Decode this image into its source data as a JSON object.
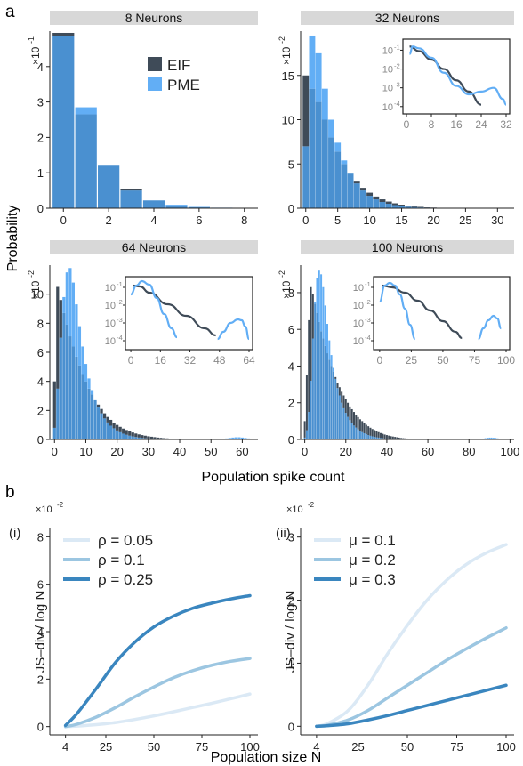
{
  "colors": {
    "eif": "#3f4b58",
    "pme": "#62aef5",
    "overlap": "#4a90d0",
    "strip": "#d8d8d8",
    "axis": "#222222",
    "inset_axis": "#888888",
    "shade_low": "#dbe9f5",
    "shade_mid": "#9cc6e1",
    "shade_high": "#3a86bf"
  },
  "labels": {
    "panel_a": "a",
    "panel_b": "b",
    "ylabel_a": "Probability",
    "xlabel_a": "Population spike count",
    "sub_i": "(i)",
    "sub_ii": "(ii)",
    "ylabel_b": "JS–div / log N",
    "xlabel_b": "Population size N",
    "x10": "×10",
    "exp_m1": "-1",
    "exp_m2": "-2"
  },
  "legend_a": [
    {
      "name": "EIF",
      "color": "#3f4b58"
    },
    {
      "name": "PME",
      "color": "#62aef5"
    }
  ],
  "chart_data": [
    {
      "type": "bar",
      "id": "p8",
      "title": "8  Neurons",
      "multiplier": "×10^-1",
      "xlim": [
        -0.6,
        8.6
      ],
      "ylim": [
        0,
        5
      ],
      "xticks": [
        0,
        2,
        4,
        6,
        8
      ],
      "yticks": [
        0,
        1,
        2,
        3,
        4
      ],
      "series": [
        {
          "name": "EIF",
          "values": [
            4.95,
            2.65,
            1.2,
            0.55,
            0.22,
            0.08,
            0.03,
            0.01,
            0.0
          ]
        },
        {
          "name": "PME",
          "values": [
            4.85,
            2.85,
            1.2,
            0.5,
            0.22,
            0.1,
            0.04,
            0.015,
            0.005
          ]
        }
      ]
    },
    {
      "type": "bar",
      "id": "p32",
      "title": "32  Neurons",
      "multiplier": "×10^-2",
      "xlim": [
        -0.8,
        32.6
      ],
      "ylim": [
        0,
        20
      ],
      "xticks": [
        0,
        5,
        10,
        15,
        20,
        25,
        30
      ],
      "yticks": [
        0,
        5,
        10,
        15
      ],
      "series": [
        {
          "name": "EIF",
          "values": [
            15.0,
            13.5,
            12.0,
            10.0,
            8.0,
            6.4,
            5.0,
            3.9,
            3.0,
            2.3,
            1.75,
            1.32,
            1.0,
            0.75,
            0.55,
            0.4,
            0.29,
            0.21,
            0.15,
            0.1,
            0.07,
            0.05,
            0.035,
            0.025,
            0.015,
            0.01,
            0.005,
            0,
            0,
            0,
            0,
            0,
            0
          ]
        },
        {
          "name": "PME",
          "values": [
            7.0,
            19.5,
            17.5,
            13.5,
            10.0,
            7.4,
            5.4,
            3.9,
            2.8,
            2.0,
            1.4,
            1.0,
            0.7,
            0.5,
            0.35,
            0.25,
            0.18,
            0.13,
            0.09,
            0.07,
            0.05,
            0.04,
            0.03,
            0.03,
            0.025,
            0.025,
            0.03,
            0.03,
            0.03,
            0.025,
            0.02,
            0.015,
            0.01
          ]
        }
      ],
      "inset": {
        "type": "line",
        "xlim": [
          0,
          32
        ],
        "xticks": [
          0,
          8,
          16,
          24,
          32
        ],
        "yticks_log": [
          "10^-1",
          "10^-2",
          "10^-3",
          "10^-4"
        ],
        "yrange_log": [
          -4.2,
          -0.6
        ],
        "series": [
          {
            "name": "EIF",
            "x": [
              1,
              4,
              8,
              12,
              16,
              20,
              24
            ],
            "log10y": [
              -0.8,
              -1.05,
              -1.5,
              -2.0,
              -2.6,
              -3.2,
              -3.9
            ]
          },
          {
            "name": "PME",
            "x": [
              1,
              2,
              4,
              8,
              12,
              16,
              20,
              24,
              28,
              31,
              32
            ],
            "log10y": [
              -1.2,
              -0.8,
              -0.9,
              -1.4,
              -2.2,
              -2.9,
              -3.35,
              -3.2,
              -3.0,
              -3.6,
              -3.9
            ]
          }
        ]
      }
    },
    {
      "type": "bar",
      "id": "p64",
      "title": "64  Neurons",
      "multiplier": "×10^-2",
      "xlim": [
        -1.5,
        65
      ],
      "ylim": [
        0,
        12
      ],
      "xticks": [
        0,
        10,
        20,
        30,
        40,
        50,
        60
      ],
      "yticks": [
        0,
        2,
        4,
        6,
        8,
        10
      ],
      "series": [
        {
          "name": "EIF",
          "values": [
            4.0,
            10.5,
            9.6,
            8.7,
            7.9,
            7.1,
            6.4,
            5.7,
            5.1,
            4.5,
            4.0,
            3.5,
            3.1,
            2.7,
            2.4,
            2.1,
            1.8,
            1.55,
            1.35,
            1.15,
            1.0,
            0.87,
            0.75,
            0.65,
            0.56,
            0.48,
            0.41,
            0.35,
            0.3,
            0.26,
            0.22,
            0.19,
            0.16,
            0.13,
            0.11,
            0.09,
            0.075,
            0.06,
            0.05,
            0.04,
            0.03,
            0.02,
            0.015,
            0.01,
            0.005,
            0,
            0,
            0,
            0,
            0,
            0,
            0,
            0,
            0,
            0,
            0,
            0,
            0,
            0,
            0,
            0,
            0,
            0,
            0,
            0
          ]
        },
        {
          "name": "PME",
          "values": [
            0.8,
            3.5,
            7.0,
            9.8,
            11.5,
            11.8,
            10.8,
            9.3,
            7.8,
            6.4,
            5.2,
            4.2,
            3.4,
            2.7,
            2.2,
            1.8,
            1.45,
            1.17,
            0.95,
            0.77,
            0.62,
            0.5,
            0.4,
            0.32,
            0.26,
            0.21,
            0.17,
            0.13,
            0.1,
            0.08,
            0.06,
            0.05,
            0.04,
            0.03,
            0.02,
            0.015,
            0.01,
            0.008,
            0.006,
            0.004,
            0.003,
            0.002,
            0.001,
            0,
            0,
            0,
            0,
            0,
            0,
            0,
            0,
            0,
            0,
            0.02,
            0.04,
            0.07,
            0.1,
            0.13,
            0.15,
            0.15,
            0.13,
            0.1,
            0.07,
            0.04,
            0.02
          ]
        }
      ],
      "inset": {
        "type": "line",
        "xlim": [
          -1,
          64
        ],
        "xticks": [
          0,
          16,
          32,
          48,
          64
        ],
        "yticks_log": [
          "10^-1",
          "10^-2",
          "10^-3",
          "10^-4"
        ],
        "yrange_log": [
          -4.3,
          -0.6
        ],
        "series": [
          {
            "name": "EIF",
            "x": [
              1,
              5,
              10,
              20,
              30,
              40,
              46
            ],
            "log10y": [
              -0.9,
              -0.95,
              -1.3,
              -1.95,
              -2.6,
              -3.3,
              -3.7
            ]
          },
          {
            "name": "PME",
            "x": [
              0,
              3,
              6,
              10,
              14,
              18,
              22,
              25
            ],
            "log10y": [
              -1.4,
              -0.9,
              -0.65,
              -0.85,
              -1.6,
              -2.5,
              -3.3,
              -3.8
            ]
          },
          {
            "name": "PME",
            "x": [
              47,
              50,
              54,
              58,
              60,
              62,
              64
            ],
            "log10y": [
              -3.9,
              -3.5,
              -3.0,
              -2.8,
              -2.85,
              -3.2,
              -3.9
            ]
          }
        ]
      }
    },
    {
      "type": "bar",
      "id": "p100",
      "title": "100  Neurons",
      "multiplier": "×10^-2",
      "xlim": [
        -2,
        102
      ],
      "ylim": [
        0,
        9.5
      ],
      "xticks": [
        0,
        20,
        40,
        60,
        80,
        100
      ],
      "yticks": [
        0,
        2,
        4,
        6,
        8
      ],
      "series": [
        {
          "name": "EIF",
          "values": [
            1.0,
            3.5,
            6.5,
            8.3,
            7.9,
            7.4,
            6.9,
            6.4,
            5.9,
            5.5,
            5.1,
            4.7,
            4.35,
            4.0,
            3.7,
            3.4,
            3.1,
            2.85,
            2.6,
            2.4,
            2.2,
            2.0,
            1.8,
            1.65,
            1.5,
            1.35,
            1.22,
            1.1,
            1.0,
            0.9,
            0.8,
            0.72,
            0.64,
            0.57,
            0.51,
            0.45,
            0.4,
            0.35,
            0.31,
            0.27,
            0.24,
            0.21,
            0.18,
            0.16,
            0.14,
            0.12,
            0.1,
            0.08,
            0.07,
            0.06,
            0.05,
            0.04,
            0.035,
            0.03,
            0.025,
            0.02,
            0.015,
            0.01,
            0.008,
            0.006,
            0.004,
            0.003,
            0.002,
            0.001,
            0,
            0,
            0,
            0,
            0,
            0,
            0,
            0,
            0,
            0,
            0,
            0,
            0,
            0,
            0,
            0,
            0,
            0,
            0,
            0,
            0,
            0,
            0,
            0,
            0,
            0,
            0,
            0,
            0,
            0,
            0,
            0,
            0,
            0,
            0,
            0
          ]
        },
        {
          "name": "PME",
          "values": [
            0.1,
            0.5,
            1.5,
            3.2,
            5.5,
            7.5,
            8.8,
            9.2,
            9.0,
            8.3,
            7.3,
            6.3,
            5.4,
            4.6,
            3.9,
            3.3,
            2.8,
            2.4,
            2.0,
            1.7,
            1.45,
            1.23,
            1.05,
            0.9,
            0.76,
            0.65,
            0.55,
            0.47,
            0.4,
            0.34,
            0.29,
            0.24,
            0.2,
            0.17,
            0.14,
            0.12,
            0.1,
            0.08,
            0.065,
            0.05,
            0.04,
            0.03,
            0.025,
            0.02,
            0.015,
            0.01,
            0.008,
            0.006,
            0.004,
            0.003,
            0.002,
            0.001,
            0,
            0,
            0,
            0,
            0,
            0,
            0,
            0,
            0,
            0,
            0,
            0,
            0,
            0,
            0,
            0,
            0,
            0,
            0,
            0,
            0,
            0,
            0,
            0,
            0,
            0,
            0,
            0,
            0,
            0,
            0,
            0,
            0.01,
            0.02,
            0.03,
            0.05,
            0.07,
            0.09,
            0.1,
            0.1,
            0.09,
            0.08,
            0.06,
            0.04,
            0.03,
            0.02,
            0.01,
            0.005
          ]
        }
      ],
      "inset": {
        "type": "line",
        "xlim": [
          -2,
          100
        ],
        "xticks": [
          0,
          25,
          50,
          75,
          100
        ],
        "yticks_log": [
          "10^-1",
          "10^-2",
          "10^-3",
          "10^-4"
        ],
        "yrange_log": [
          -4.3,
          -0.6
        ],
        "series": [
          {
            "name": "EIF",
            "x": [
              2,
              10,
              20,
              30,
              40,
              50,
              60,
              65
            ],
            "log10y": [
              -0.9,
              -1.0,
              -1.3,
              -1.75,
              -2.3,
              -2.9,
              -3.5,
              -3.85
            ]
          },
          {
            "name": "PME",
            "x": [
              0,
              4,
              8,
              12,
              16,
              20,
              24,
              28
            ],
            "log10y": [
              -1.8,
              -0.9,
              -0.75,
              -0.9,
              -1.4,
              -2.2,
              -3.1,
              -3.9
            ]
          },
          {
            "name": "PME",
            "x": [
              78,
              82,
              86,
              90,
              93,
              96
            ],
            "log10y": [
              -3.9,
              -3.3,
              -2.85,
              -2.6,
              -2.75,
              -3.3
            ]
          }
        ]
      }
    },
    {
      "type": "line",
      "id": "bi",
      "multiplier": "×10^-2",
      "xlim": [
        0,
        100
      ],
      "ylim": [
        -0.2,
        8.2
      ],
      "xticks": [
        4,
        25,
        50,
        75,
        100
      ],
      "yticks": [
        0,
        2,
        4,
        6,
        8
      ],
      "series": [
        {
          "name": "ρ = 0.05",
          "shade": "low",
          "x": [
            4,
            10,
            20,
            30,
            40,
            50,
            60,
            70,
            80,
            90,
            100
          ],
          "values": [
            0.0,
            0.02,
            0.08,
            0.17,
            0.3,
            0.45,
            0.62,
            0.8,
            0.98,
            1.17,
            1.37
          ]
        },
        {
          "name": "ρ = 0.1",
          "shade": "mid",
          "x": [
            4,
            10,
            20,
            30,
            40,
            50,
            60,
            70,
            80,
            90,
            100
          ],
          "values": [
            0.0,
            0.1,
            0.4,
            0.8,
            1.25,
            1.67,
            2.05,
            2.35,
            2.58,
            2.75,
            2.87
          ]
        },
        {
          "name": "ρ = 0.25",
          "shade": "high",
          "x": [
            4,
            10,
            20,
            30,
            40,
            50,
            60,
            70,
            80,
            90,
            100
          ],
          "values": [
            0.05,
            0.55,
            1.6,
            2.7,
            3.55,
            4.2,
            4.65,
            4.98,
            5.2,
            5.38,
            5.52
          ]
        }
      ]
    },
    {
      "type": "line",
      "id": "bii",
      "multiplier": "×10^-2",
      "xlim": [
        0,
        100
      ],
      "ylim": [
        -0.08,
        3.08
      ],
      "xticks": [
        4,
        25,
        50,
        75,
        100
      ],
      "yticks": [
        0,
        1,
        2,
        3
      ],
      "series": [
        {
          "name": "μ = 0.1",
          "shade": "low",
          "x": [
            4,
            10,
            20,
            30,
            40,
            50,
            60,
            70,
            80,
            90,
            100
          ],
          "values": [
            0.0,
            0.05,
            0.25,
            0.65,
            1.15,
            1.6,
            2.0,
            2.32,
            2.57,
            2.75,
            2.88
          ]
        },
        {
          "name": "μ = 0.2",
          "shade": "mid",
          "x": [
            4,
            10,
            20,
            30,
            40,
            50,
            60,
            70,
            80,
            90,
            100
          ],
          "values": [
            0.0,
            0.02,
            0.1,
            0.25,
            0.45,
            0.65,
            0.85,
            1.05,
            1.23,
            1.4,
            1.56
          ]
        },
        {
          "name": "μ = 0.3",
          "shade": "high",
          "x": [
            4,
            10,
            20,
            30,
            40,
            50,
            60,
            70,
            80,
            90,
            100
          ],
          "values": [
            0.0,
            0.01,
            0.04,
            0.1,
            0.17,
            0.25,
            0.33,
            0.41,
            0.49,
            0.57,
            0.65
          ]
        }
      ]
    }
  ]
}
